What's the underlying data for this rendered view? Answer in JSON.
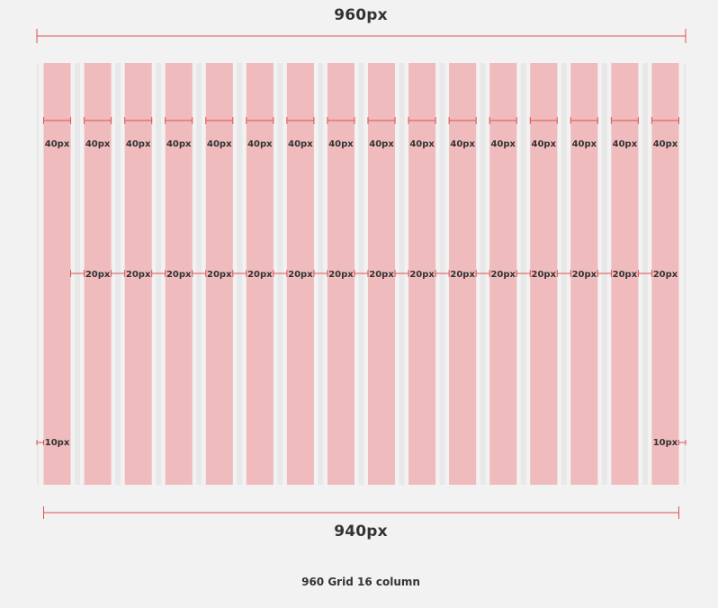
{
  "diagram": {
    "outer_width_label": "960px",
    "content_width_label": "940px",
    "column_width_label": "40px",
    "gutter_width_label": "20px",
    "margin_width_label": "10px",
    "caption": "960 Grid 16 column",
    "column_count": 16,
    "colors": {
      "background": "#f2f2f2",
      "column_fill": "#efbbbd",
      "guide": "#e8e8e8",
      "dimension_line": "#e05050",
      "text": "#333333"
    }
  }
}
